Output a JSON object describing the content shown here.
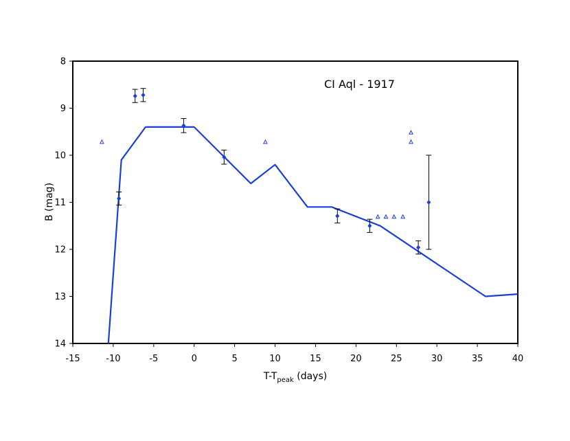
{
  "chart_data": {
    "type": "scatter",
    "title": "CI Aql - 1917",
    "xlabel_main": "T-T",
    "xlabel_sub": "peak",
    "xlabel_tail": " (days)",
    "ylabel": "B (mag)",
    "xlim": [
      -15,
      40
    ],
    "ylim": [
      8,
      14
    ],
    "y_inverted": true,
    "grid": false,
    "x_ticks": [
      "-15",
      "-10",
      "-5",
      "0",
      "5",
      "10",
      "15",
      "20",
      "25",
      "30",
      "35",
      "40"
    ],
    "x_tick_values": [
      -15,
      -10,
      -5,
      0,
      5,
      10,
      15,
      20,
      25,
      30,
      35,
      40
    ],
    "y_ticks": [
      "8",
      "9",
      "10",
      "11",
      "12",
      "13",
      "14"
    ],
    "y_tick_values": [
      8,
      9,
      10,
      11,
      12,
      13,
      14
    ],
    "colors": {
      "model": "#1a3fd6",
      "points": "#1a3fd6",
      "errorbars": "#000000",
      "limits": "#1a3fd6"
    },
    "series": [
      {
        "kind": "line",
        "x": [
          -10.6,
          -9,
          -6,
          0,
          3.5,
          7,
          10,
          14,
          17,
          23,
          36,
          40
        ],
        "y": [
          14.0,
          10.1,
          9.4,
          9.4,
          10.0,
          10.6,
          10.2,
          11.1,
          11.1,
          11.5,
          13.0,
          12.95
        ]
      },
      {
        "kind": "points_with_errors",
        "x": [
          -9.3,
          -7.3,
          -6.3,
          -1.3,
          3.7,
          17.7,
          21.7,
          27.7,
          29.0
        ],
        "y": [
          10.92,
          8.74,
          8.72,
          9.37,
          10.04,
          11.29,
          11.5,
          11.96,
          11.0
        ],
        "err": [
          0.14,
          0.14,
          0.14,
          0.15,
          0.15,
          0.15,
          0.14,
          0.14,
          1.0
        ]
      },
      {
        "kind": "upper_limits",
        "x": [
          -11.4,
          8.8,
          22.7,
          23.7,
          24.7,
          25.8,
          26.8,
          26.8
        ],
        "y": [
          9.72,
          9.72,
          11.31,
          11.31,
          11.31,
          11.31,
          9.52,
          9.72
        ]
      }
    ]
  }
}
